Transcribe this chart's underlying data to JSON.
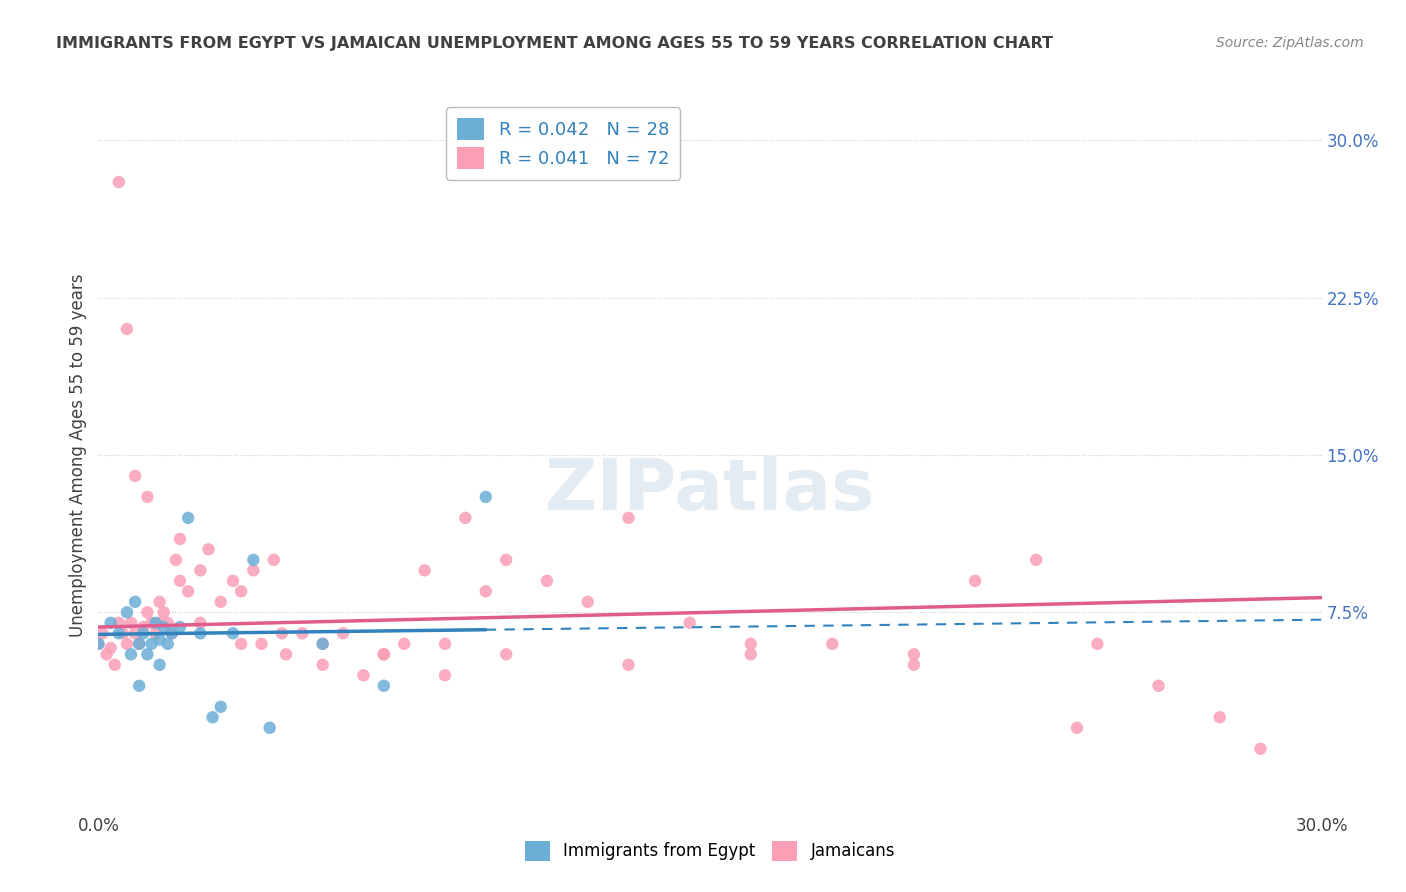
{
  "title": "IMMIGRANTS FROM EGYPT VS JAMAICAN UNEMPLOYMENT AMONG AGES 55 TO 59 YEARS CORRELATION CHART",
  "source": "Source: ZipAtlas.com",
  "xlabel": "",
  "ylabel": "Unemployment Among Ages 55 to 59 years",
  "xlim": [
    0.0,
    0.3
  ],
  "ylim": [
    -0.02,
    0.32
  ],
  "yticks": [
    0.075,
    0.15,
    0.225,
    0.3
  ],
  "ytick_labels": [
    "7.5%",
    "15.0%",
    "22.5%",
    "30.0%"
  ],
  "xticks": [
    0.0,
    0.05,
    0.1,
    0.15,
    0.2,
    0.25,
    0.3
  ],
  "xtick_labels": [
    "0.0%",
    "",
    "",
    "",
    "",
    "",
    "30.0%"
  ],
  "legend_entry1": "R = 0.042   N = 28",
  "legend_entry2": "R = 0.041   N = 72",
  "legend_label1": "Immigrants from Egypt",
  "legend_label2": "Jamaicans",
  "r1": 0.042,
  "n1": 28,
  "r2": 0.041,
  "n2": 72,
  "color_blue": "#6baed6",
  "color_pink": "#fa9fb5",
  "color_blue_line": "#3182bd",
  "color_pink_line": "#e05c8a",
  "color_axis_label": "#4472c4",
  "watermark_color": "#c8d8e8",
  "background_color": "#ffffff",
  "title_color": "#404040",
  "blue_points_x": [
    0.0,
    0.003,
    0.005,
    0.007,
    0.008,
    0.009,
    0.01,
    0.01,
    0.011,
    0.012,
    0.013,
    0.014,
    0.015,
    0.015,
    0.016,
    0.017,
    0.018,
    0.02,
    0.022,
    0.025,
    0.028,
    0.03,
    0.033,
    0.038,
    0.042,
    0.055,
    0.07,
    0.095
  ],
  "blue_points_y": [
    0.06,
    0.07,
    0.065,
    0.075,
    0.055,
    0.08,
    0.06,
    0.04,
    0.065,
    0.055,
    0.06,
    0.07,
    0.062,
    0.05,
    0.068,
    0.06,
    0.065,
    0.068,
    0.12,
    0.065,
    0.025,
    0.03,
    0.065,
    0.1,
    0.02,
    0.06,
    0.04,
    0.13
  ],
  "pink_points_x": [
    0.0,
    0.001,
    0.002,
    0.003,
    0.004,
    0.005,
    0.006,
    0.007,
    0.008,
    0.009,
    0.01,
    0.011,
    0.012,
    0.013,
    0.014,
    0.015,
    0.016,
    0.017,
    0.018,
    0.019,
    0.02,
    0.022,
    0.025,
    0.027,
    0.03,
    0.033,
    0.035,
    0.038,
    0.04,
    0.043,
    0.046,
    0.05,
    0.055,
    0.06,
    0.065,
    0.07,
    0.075,
    0.08,
    0.085,
    0.09,
    0.095,
    0.1,
    0.11,
    0.12,
    0.13,
    0.145,
    0.16,
    0.18,
    0.2,
    0.215,
    0.23,
    0.245,
    0.26,
    0.275,
    0.285,
    0.005,
    0.007,
    0.009,
    0.012,
    0.015,
    0.02,
    0.025,
    0.035,
    0.045,
    0.055,
    0.07,
    0.085,
    0.1,
    0.13,
    0.16,
    0.2,
    0.24
  ],
  "pink_points_y": [
    0.06,
    0.065,
    0.055,
    0.058,
    0.05,
    0.07,
    0.065,
    0.06,
    0.07,
    0.065,
    0.06,
    0.068,
    0.075,
    0.07,
    0.065,
    0.08,
    0.075,
    0.07,
    0.065,
    0.1,
    0.09,
    0.085,
    0.095,
    0.105,
    0.08,
    0.09,
    0.085,
    0.095,
    0.06,
    0.1,
    0.055,
    0.065,
    0.06,
    0.065,
    0.045,
    0.055,
    0.06,
    0.095,
    0.06,
    0.12,
    0.085,
    0.1,
    0.09,
    0.08,
    0.12,
    0.07,
    0.055,
    0.06,
    0.05,
    0.09,
    0.1,
    0.06,
    0.04,
    0.025,
    0.01,
    0.28,
    0.21,
    0.14,
    0.13,
    0.07,
    0.11,
    0.07,
    0.06,
    0.065,
    0.05,
    0.055,
    0.045,
    0.055,
    0.05,
    0.06,
    0.055,
    0.02
  ]
}
